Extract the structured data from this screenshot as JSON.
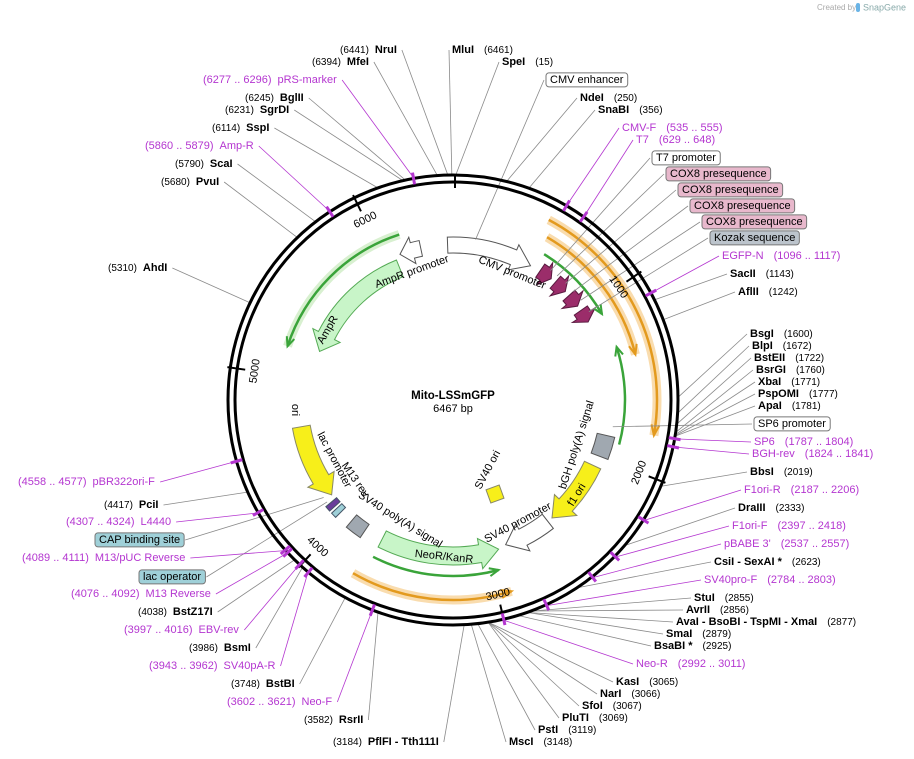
{
  "header": {
    "credit": "Created by",
    "brand": "SnapGene"
  },
  "map": {
    "name": "Mito-LSSmGFP",
    "size": "6467 bp",
    "ring_ticks": [
      1000,
      2000,
      3000,
      4000,
      5000,
      6000
    ],
    "primer_color": "#b436d0",
    "features": [
      "AmpR promoter",
      "AmpR",
      "CMV promoter",
      "ori",
      "lac promoter",
      "M13 rev",
      "SV40 poly(A) signal",
      "NeoR/KanR",
      "SV40 promoter",
      "SV40 ori",
      "f1 ori",
      "bGH poly(A) signal"
    ]
  },
  "annotations": [
    {
      "position": "(6441)",
      "name": "NruI"
    },
    {
      "name": "MluI",
      "position": "(6461)"
    },
    {
      "position": "(6394)",
      "name": "MfeI"
    },
    {
      "name": "SpeI",
      "position": "(15)"
    },
    {
      "range": "(6277 .. 6296)",
      "name": "pRS-marker"
    },
    {
      "label": "CMV enhancer",
      "color": "#ffffff"
    },
    {
      "position": "(6245)",
      "name": "BglII"
    },
    {
      "name": "NdeI",
      "position": "(250)"
    },
    {
      "position": "(6231)",
      "name": "SgrDI"
    },
    {
      "name": "SnaBI",
      "position": "(356)"
    },
    {
      "position": "(6114)",
      "name": "SspI"
    },
    {
      "name": "CMV-F",
      "range": "(535 .. 555)"
    },
    {
      "range": "(5860 .. 5879)",
      "name": "Amp-R"
    },
    {
      "name": "T7",
      "range": "(629 .. 648)"
    },
    {
      "label": "T7 promoter",
      "color": "#ffffff"
    },
    {
      "position": "(5790)",
      "name": "ScaI"
    },
    {
      "label": "COX8 presequence",
      "color": "#e8b8cc"
    },
    {
      "label": "COX8 presequence",
      "color": "#e8b8cc"
    },
    {
      "label": "COX8 presequence",
      "color": "#e8b8cc"
    },
    {
      "label": "COX8 presequence",
      "color": "#e8b8cc"
    },
    {
      "position": "(5680)",
      "name": "PvuI"
    },
    {
      "label": "Kozak sequence",
      "color": "#bcc4cc"
    },
    {
      "name": "EGFP-N",
      "range": "(1096 .. 1117)"
    },
    {
      "position": "(5310)",
      "name": "AhdI"
    },
    {
      "name": "SacII",
      "position": "(1143)"
    },
    {
      "name": "AflII",
      "position": "(1242)"
    },
    {
      "name": "BsgI",
      "position": "(1600)"
    },
    {
      "name": "BlpI",
      "position": "(1672)"
    },
    {
      "name": "BstEII",
      "position": "(1722)"
    },
    {
      "name": "BsrGI",
      "position": "(1760)"
    },
    {
      "name": "XbaI",
      "position": "(1771)"
    },
    {
      "name": "PspOMI",
      "position": "(1777)"
    },
    {
      "name": "ApaI",
      "position": "(1781)"
    },
    {
      "label": "SP6 promoter",
      "color": "#ffffff"
    },
    {
      "name": "SP6",
      "range": "(1787 .. 1804)"
    },
    {
      "name": "BGH-rev",
      "range": "(1824 .. 1841)"
    },
    {
      "name": "BbsI",
      "position": "(2019)"
    },
    {
      "name": "F1ori-R",
      "range": "(2187 .. 2206)"
    },
    {
      "name": "DraIII",
      "position": "(2333)"
    },
    {
      "name": "F1ori-F",
      "range": "(2397 .. 2418)"
    },
    {
      "name": "pBABE 3'",
      "range": "(2537 .. 2557)"
    },
    {
      "name": "CsiI - SexAI *",
      "position": "(2623)"
    },
    {
      "name": "SV40pro-F",
      "range": "(2784 .. 2803)"
    },
    {
      "name": "StuI",
      "position": "(2855)"
    },
    {
      "name": "AvrII",
      "position": "(2856)"
    },
    {
      "name": "AvaI - BsoBI - TspMI - XmaI",
      "position": "(2877)"
    },
    {
      "name": "SmaI",
      "position": "(2879)"
    },
    {
      "name": "BsaBI *",
      "position": "(2925)"
    },
    {
      "name": "Neo-R",
      "range": "(2992 .. 3011)"
    },
    {
      "name": "KasI",
      "position": "(3065)"
    },
    {
      "name": "NarI",
      "position": "(3066)"
    },
    {
      "name": "SfoI",
      "position": "(3067)"
    },
    {
      "name": "PluTI",
      "position": "(3069)"
    },
    {
      "name": "PstI",
      "position": "(3119)"
    },
    {
      "name": "MscI",
      "position": "(3148)"
    },
    {
      "position": "(3184)",
      "name": "PflFI - Tth111I"
    },
    {
      "position": "(3582)",
      "name": "RsrII"
    },
    {
      "range": "(3602 .. 3621)",
      "name": "Neo-F"
    },
    {
      "position": "(3748)",
      "name": "BstBI"
    },
    {
      "range": "(3943 .. 3962)",
      "name": "SV40pA-R"
    },
    {
      "position": "(3986)",
      "name": "BsmI"
    },
    {
      "range": "(3997 .. 4016)",
      "name": "EBV-rev"
    },
    {
      "position": "(4038)",
      "name": "BstZ17I"
    },
    {
      "range": "(4076 .. 4092)",
      "name": "M13 Reverse"
    },
    {
      "label": "lac operator",
      "color": "#9fd0d8"
    },
    {
      "range": "(4089 .. 4111)",
      "name": "M13/pUC Reverse"
    },
    {
      "label": "CAP binding site",
      "color": "#9fd0d8"
    },
    {
      "range": "(4307 .. 4324)",
      "name": "L4440"
    },
    {
      "position": "(4417)",
      "name": "PciI"
    },
    {
      "range": "(4558 .. 4577)",
      "name": "pBR322ori-F"
    }
  ]
}
